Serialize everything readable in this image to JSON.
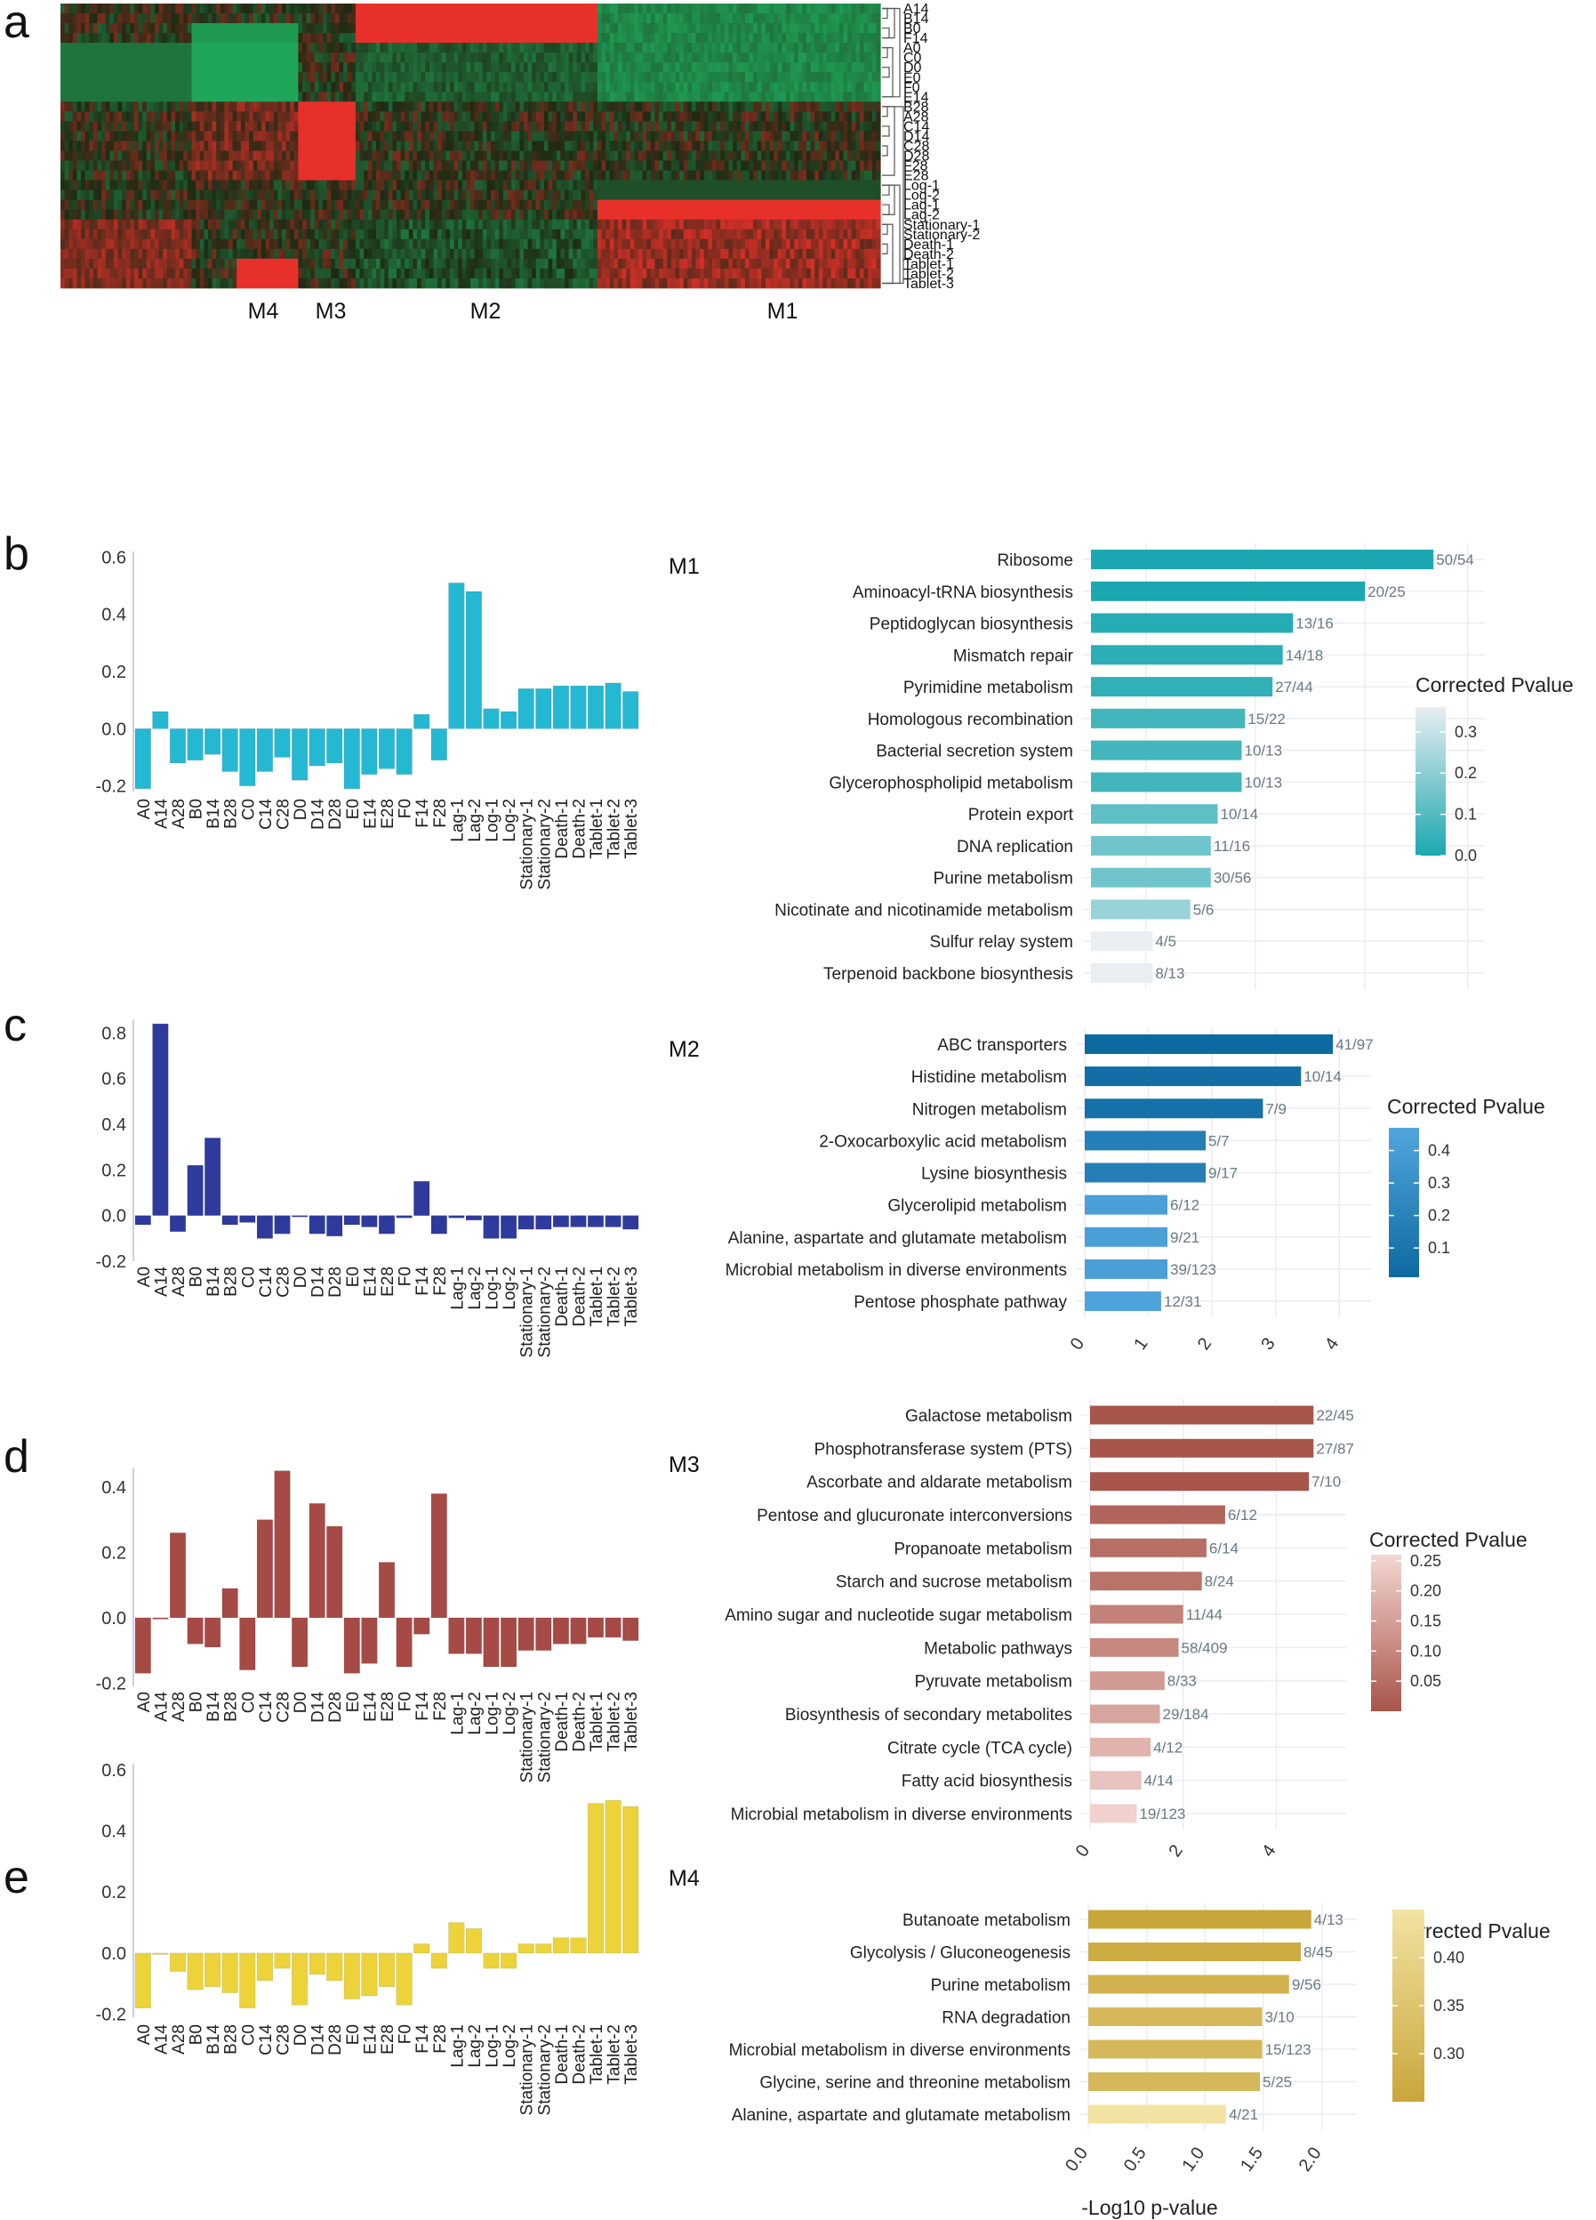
{
  "panels": {
    "a": "a",
    "b": "b",
    "c": "c",
    "d": "d",
    "e": "e"
  },
  "heatmap": {
    "row_labels": [
      "A14",
      "B14",
      "B0",
      "F14",
      "A0",
      "C0",
      "D0",
      "E0",
      "F0",
      "E14",
      "B28",
      "A28",
      "C14",
      "D14",
      "C28",
      "D28",
      "F28",
      "E28",
      "Log-1",
      "Log-2",
      "Lag-1",
      "Lag-2",
      "Stationary-1",
      "Stationary-2",
      "Death-1",
      "Death-2",
      "Tablet-1",
      "Tablet-2",
      "Tablet-3"
    ],
    "module_labels": [
      "M4",
      "M3",
      "M2",
      "M1"
    ]
  },
  "colors": {
    "heat_red": "#e8302a",
    "heat_green": "#1fa65a",
    "heat_dark": "#1f2a14",
    "b_bar": "#25b8d2",
    "c_bar": "#2e3a9c",
    "d_bar": "#a64a45",
    "e_bar": "#ecd33a",
    "b_enrich_low": "#1ba8b0",
    "b_enrich_high": "#e8eef2",
    "c_enrich_low": "#0d6aa0",
    "c_enrich_high": "#52a6de",
    "d_enrich_low": "#a8554a",
    "d_enrich_high": "#f4d6d2",
    "e_enrich_low": "#c9a63a",
    "e_enrich_high": "#f2e3a2"
  },
  "chart_data": [
    {
      "panel": "b",
      "type": "bar",
      "categories": [
        "A0",
        "A14",
        "A28",
        "B0",
        "B14",
        "B28",
        "C0",
        "C14",
        "C28",
        "D0",
        "D14",
        "D28",
        "E0",
        "E14",
        "E28",
        "F0",
        "F14",
        "F28",
        "Lag-1",
        "Lag-2",
        "Log-1",
        "Log-2",
        "Stationary-1",
        "Stationary-2",
        "Death-1",
        "Death-2",
        "Tablet-1",
        "Tablet-2",
        "Tablet-3"
      ],
      "values": [
        -0.21,
        0.06,
        -0.12,
        -0.11,
        -0.09,
        -0.15,
        -0.2,
        -0.15,
        -0.1,
        -0.18,
        -0.13,
        -0.12,
        -0.21,
        -0.16,
        -0.14,
        -0.16,
        0.05,
        -0.11,
        0.51,
        0.48,
        0.07,
        0.06,
        0.14,
        0.14,
        0.15,
        0.15,
        0.15,
        0.16,
        0.13
      ],
      "ylim": [
        -0.22,
        0.62
      ],
      "yticks": [
        -0.2,
        0.0,
        0.2,
        0.4,
        0.6
      ],
      "ytick_labels": [
        "-0.2",
        "0.0",
        "0.2",
        "0.4",
        "0.6"
      ],
      "color": "#25b8d2"
    },
    {
      "panel": "c",
      "type": "bar",
      "categories": [
        "A0",
        "A14",
        "A28",
        "B0",
        "B14",
        "B28",
        "C0",
        "C14",
        "C28",
        "D0",
        "D14",
        "D28",
        "E0",
        "E14",
        "E28",
        "F0",
        "F14",
        "F28",
        "Lag-1",
        "Lag-2",
        "Log-1",
        "Log-2",
        "Stationary-1",
        "Stationary-2",
        "Death-1",
        "Death-2",
        "Tablet-1",
        "Tablet-2",
        "Tablet-3"
      ],
      "values": [
        -0.04,
        0.84,
        -0.07,
        0.22,
        0.34,
        -0.04,
        -0.03,
        -0.1,
        -0.08,
        0.0,
        -0.08,
        -0.09,
        -0.04,
        -0.05,
        -0.08,
        -0.01,
        0.15,
        -0.08,
        -0.01,
        -0.02,
        -0.1,
        -0.1,
        -0.06,
        -0.06,
        -0.05,
        -0.05,
        -0.05,
        -0.05,
        -0.06
      ],
      "ylim": [
        -0.2,
        0.86
      ],
      "yticks": [
        -0.2,
        0.0,
        0.2,
        0.4,
        0.6,
        0.8
      ],
      "ytick_labels": [
        "-0.2",
        "0.0",
        "0.2",
        "0.4",
        "0.6",
        "0.8"
      ],
      "color": "#2e3a9c"
    },
    {
      "panel": "d",
      "type": "bar",
      "categories": [
        "A0",
        "A14",
        "A28",
        "B0",
        "B14",
        "B28",
        "C0",
        "C14",
        "C28",
        "D0",
        "D14",
        "D28",
        "E0",
        "E14",
        "E28",
        "F0",
        "F14",
        "F28",
        "Lag-1",
        "Lag-2",
        "Log-1",
        "Log-2",
        "Stationary-1",
        "Stationary-2",
        "Death-1",
        "Death-2",
        "Tablet-1",
        "Tablet-2",
        "Tablet-3"
      ],
      "values": [
        -0.17,
        0.0,
        0.26,
        -0.08,
        -0.09,
        0.09,
        -0.16,
        0.3,
        0.45,
        -0.15,
        0.35,
        0.28,
        -0.17,
        -0.14,
        0.17,
        -0.15,
        -0.05,
        0.38,
        -0.11,
        -0.11,
        -0.15,
        -0.15,
        -0.1,
        -0.1,
        -0.08,
        -0.08,
        -0.06,
        -0.06,
        -0.07
      ],
      "ylim": [
        -0.21,
        0.46
      ],
      "yticks": [
        -0.2,
        0.0,
        0.2,
        0.4
      ],
      "ytick_labels": [
        "-0.2",
        "0.0",
        "0.2",
        "0.4"
      ],
      "color": "#a64a45"
    },
    {
      "panel": "e",
      "type": "bar",
      "categories": [
        "A0",
        "A14",
        "A28",
        "B0",
        "B14",
        "B28",
        "C0",
        "C14",
        "C28",
        "D0",
        "D14",
        "D28",
        "E0",
        "E14",
        "E28",
        "F0",
        "F14",
        "F28",
        "Lag-1",
        "Lag-2",
        "Log-1",
        "Log-2",
        "Stationary-1",
        "Stationary-2",
        "Death-1",
        "Death-2",
        "Tablet-1",
        "Tablet-2",
        "Tablet-3"
      ],
      "values": [
        -0.18,
        0.0,
        -0.06,
        -0.12,
        -0.11,
        -0.13,
        -0.18,
        -0.09,
        -0.05,
        -0.17,
        -0.07,
        -0.09,
        -0.15,
        -0.14,
        -0.11,
        -0.17,
        0.03,
        -0.05,
        0.1,
        0.08,
        -0.05,
        -0.05,
        0.03,
        0.03,
        0.05,
        0.05,
        0.49,
        0.5,
        0.48
      ],
      "ylim": [
        -0.21,
        0.62
      ],
      "yticks": [
        -0.2,
        0.0,
        0.2,
        0.4,
        0.6
      ],
      "ytick_labels": [
        "-0.2",
        "0.0",
        "0.2",
        "0.4",
        "0.6"
      ],
      "color": "#ecd33a"
    },
    {
      "panel": "b-enrichment",
      "type": "bar",
      "orientation": "horizontal",
      "module": "M1",
      "categories": [
        "Ribosome",
        "Aminoacyl-tRNA biosynthesis",
        "Peptidoglycan biosynthesis",
        "Mismatch repair",
        "Pyrimidine metabolism",
        "Homologous recombination",
        "Bacterial secretion system",
        "Glycerophospholipid metabolism",
        "Protein export",
        "DNA replication",
        "Purine metabolism",
        "Nicotinate and nicotinamide metabolism",
        "Sulfur relay system",
        "Terpenoid backbone biosynthesis"
      ],
      "values": [
        10.0,
        8.0,
        5.9,
        5.6,
        5.3,
        4.5,
        4.4,
        4.4,
        3.7,
        3.5,
        3.5,
        2.9,
        1.8,
        1.8
      ],
      "counts": [
        "50/54",
        "20/25",
        "13/16",
        "14/18",
        "27/44",
        "15/22",
        "10/13",
        "10/13",
        "10/14",
        "11/16",
        "30/56",
        "5/6",
        "4/5",
        "8/13"
      ],
      "pvalues": [
        0.0,
        0.0,
        0.02,
        0.03,
        0.04,
        0.07,
        0.07,
        0.07,
        0.12,
        0.15,
        0.15,
        0.22,
        0.36,
        0.36
      ],
      "xmax": 11.5,
      "legend": {
        "title": "Corrected Pvalue",
        "ticks": [
          0.3,
          0.2,
          0.1,
          0.0
        ],
        "tick_labels": [
          "0.3",
          "0.2",
          "0.1",
          "0.0"
        ],
        "range": [
          0.0,
          0.36
        ]
      }
    },
    {
      "panel": "c-enrichment",
      "type": "bar",
      "orientation": "horizontal",
      "module": "M2",
      "categories": [
        "ABC transporters",
        "Histidine metabolism",
        "Nitrogen metabolism",
        "2-Oxocarboxylic acid metabolism",
        "Lysine biosynthesis",
        "Glycerolipid metabolism",
        "Alanine, aspartate and glutamate metabolism",
        "Microbial metabolism in diverse environments",
        "Pentose phosphate pathway"
      ],
      "values": [
        3.9,
        3.4,
        2.8,
        1.9,
        1.9,
        1.3,
        1.3,
        1.3,
        1.2
      ],
      "counts": [
        "41/97",
        "10/14",
        "7/9",
        "5/7",
        "9/17",
        "6/12",
        "9/21",
        "39/123",
        "12/31"
      ],
      "pvalues": [
        0.01,
        0.04,
        0.06,
        0.17,
        0.17,
        0.42,
        0.42,
        0.42,
        0.45
      ],
      "xticks": [
        0,
        1,
        2,
        3,
        4
      ],
      "xtick_labels": [
        "0",
        "1",
        "2",
        "3",
        "4"
      ],
      "xmax": 4.5,
      "legend": {
        "title": "Corrected Pvalue",
        "ticks": [
          0.4,
          0.3,
          0.2,
          0.1
        ],
        "tick_labels": [
          "0.4",
          "0.3",
          "0.2",
          "0.1"
        ],
        "range": [
          0.01,
          0.47
        ]
      }
    },
    {
      "panel": "d-enrichment",
      "type": "bar",
      "orientation": "horizontal",
      "module": "M3",
      "categories": [
        "Galactose metabolism",
        "Phosphotransferase system (PTS)",
        "Ascorbate and aldarate metabolism",
        "Pentose and glucuronate interconversions",
        "Propanoate metabolism",
        "Starch and sucrose metabolism",
        "Amino sugar and nucleotide sugar metabolism",
        "Metabolic pathways",
        "Pyruvate metabolism",
        "Biosynthesis of secondary metabolites",
        "Citrate cycle (TCA cycle)",
        "Fatty acid biosynthesis",
        "Microbial metabolism in diverse environments"
      ],
      "values": [
        4.8,
        4.8,
        4.7,
        2.9,
        2.5,
        2.4,
        2.0,
        1.9,
        1.6,
        1.5,
        1.3,
        1.1,
        1.0
      ],
      "counts": [
        "22/45",
        "27/87",
        "7/10",
        "6/12",
        "6/14",
        "8/24",
        "11/44",
        "58/409",
        "8/33",
        "29/184",
        "4/12",
        "4/14",
        "19/123"
      ],
      "pvalues": [
        0.001,
        0.001,
        0.001,
        0.03,
        0.05,
        0.06,
        0.09,
        0.1,
        0.14,
        0.16,
        0.19,
        0.22,
        0.25
      ],
      "xticks": [
        0,
        2,
        4
      ],
      "xtick_labels": [
        "0",
        "2",
        "4"
      ],
      "xmax": 5.5,
      "legend": {
        "title": "Corrected Pvalue",
        "ticks": [
          0.25,
          0.2,
          0.15,
          0.1,
          0.05
        ],
        "tick_labels": [
          "0.25",
          "0.20",
          "0.15",
          "0.10",
          "0.05"
        ],
        "range": [
          0.0,
          0.26
        ]
      }
    },
    {
      "panel": "e-enrichment",
      "type": "bar",
      "orientation": "horizontal",
      "module": "M4",
      "categories": [
        "Butanoate metabolism",
        "Glycolysis / Gluconeogenesis",
        "Purine metabolism",
        "RNA degradation",
        "Microbial metabolism in diverse environments",
        "Glycine, serine and threonine metabolism",
        "Alanine, aspartate and glutamate metabolism"
      ],
      "values": [
        1.91,
        1.82,
        1.72,
        1.49,
        1.49,
        1.47,
        1.18
      ],
      "counts": [
        "4/13",
        "8/45",
        "9/56",
        "3/10",
        "15/123",
        "5/25",
        "4/21"
      ],
      "pvalues": [
        0.25,
        0.27,
        0.29,
        0.31,
        0.31,
        0.31,
        0.45
      ],
      "xticks": [
        0.0,
        0.5,
        1.0,
        1.5,
        2.0
      ],
      "xtick_labels": [
        "0.0",
        "0.5",
        "1.0",
        "1.5",
        "2.0"
      ],
      "xmax": 2.3,
      "xlabel": "-Log10 p-value",
      "legend": {
        "title": "Corrected Pvalue",
        "ticks": [
          0.4,
          0.35,
          0.3
        ],
        "tick_labels": [
          "0.40",
          "0.35",
          "0.30"
        ],
        "range": [
          0.25,
          0.45
        ]
      }
    }
  ]
}
